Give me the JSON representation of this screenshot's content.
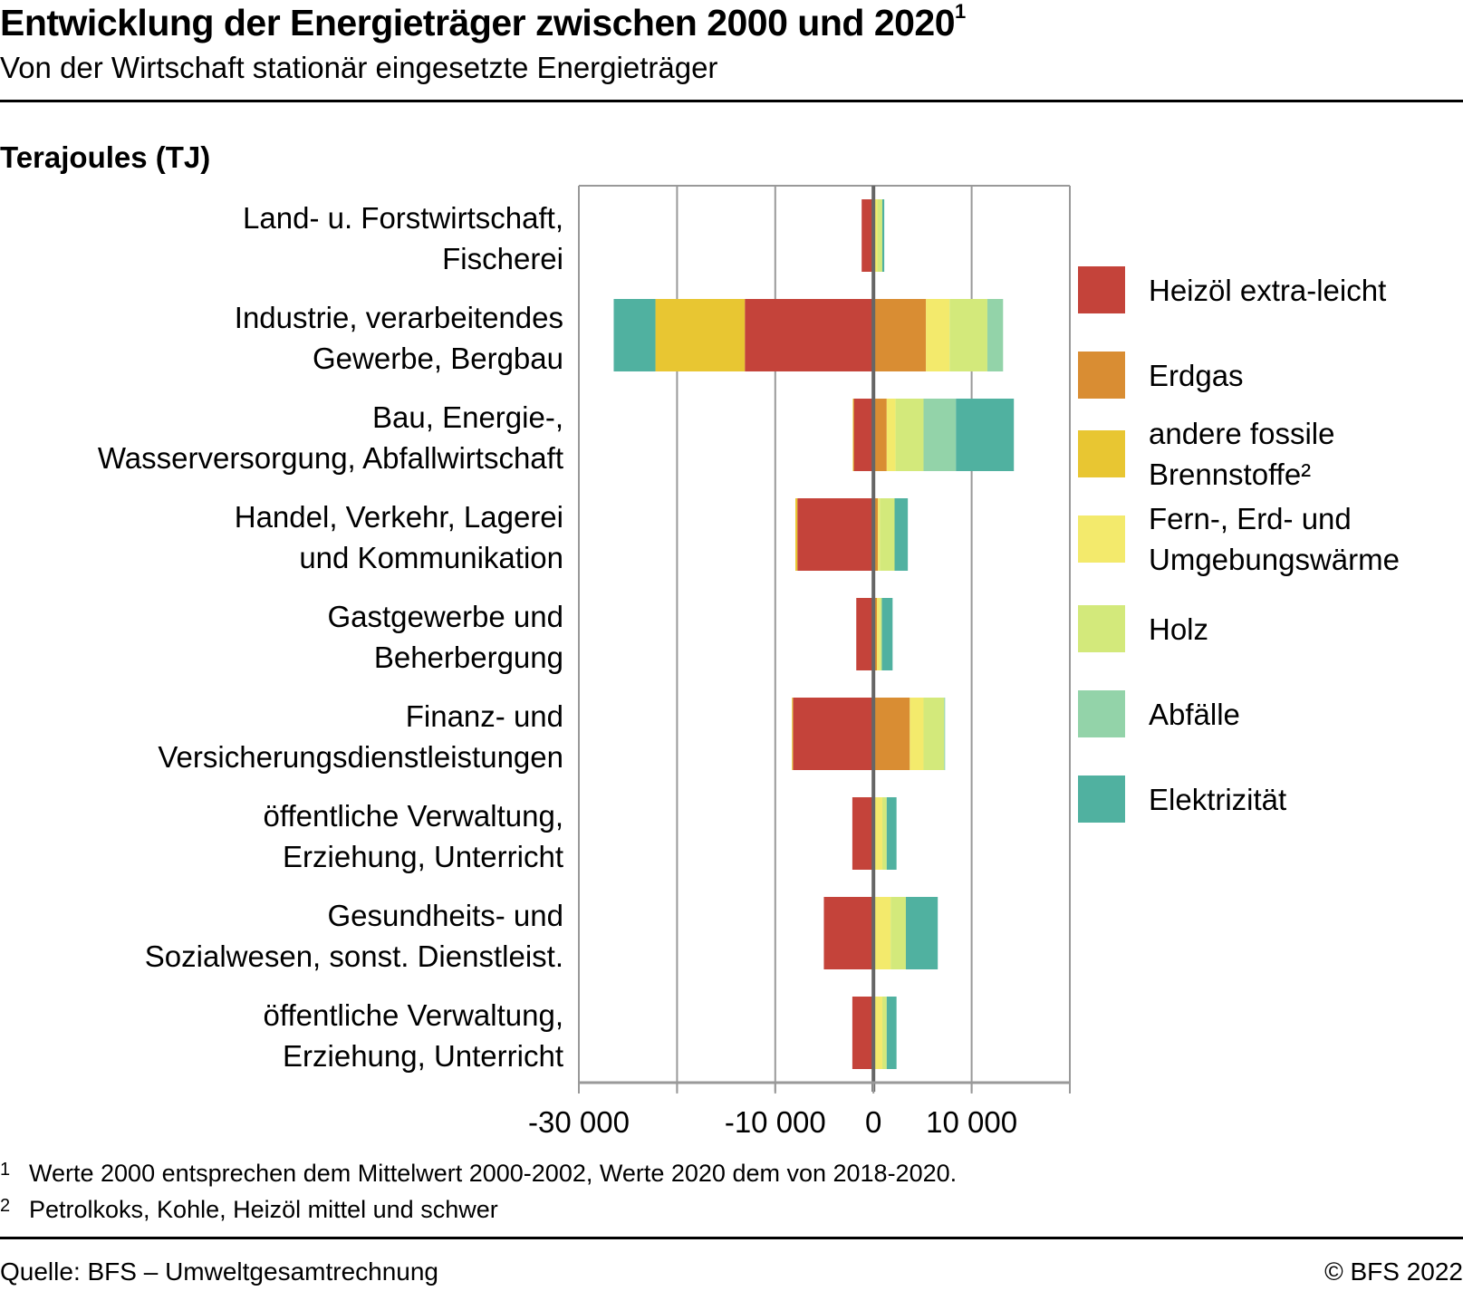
{
  "header": {
    "title": "Entwicklung der Energieträger zwischen 2000 und 2020",
    "title_footnote_mark": "1",
    "subtitle": "Von der Wirtschaft stationär eingesetzte Energieträger",
    "unit": "Terajoules (TJ)"
  },
  "chart_data": {
    "type": "bar",
    "orientation": "horizontal",
    "stacked": "diverging",
    "title": "Entwicklung der Energieträger zwischen 2000 und 2020",
    "xlabel": "",
    "ylabel": "Terajoules (TJ)",
    "xlim": [
      -30000,
      20000
    ],
    "xticks": [
      -30000,
      -20000,
      -10000,
      0,
      10000,
      20000
    ],
    "xtick_labels": [
      "-30 000",
      "",
      "-10 000",
      "0",
      "10 000",
      ""
    ],
    "grid": true,
    "legend_position": "right",
    "categories": [
      [
        "Land- u. Forstwirtschaft,",
        "Fischerei"
      ],
      [
        "Industrie, verarbeitendes",
        "Gewerbe, Bergbau"
      ],
      [
        "Bau, Energie-,",
        "Wasserversorgung, Abfallwirtschaft"
      ],
      [
        "Handel, Verkehr, Lagerei",
        "und Kommunikation"
      ],
      [
        "Gastgewerbe und",
        "Beherbergung"
      ],
      [
        "Finanz- und",
        "Versicherungsdienstleistungen"
      ],
      [
        "öffentliche Verwaltung,",
        "Erziehung, Unterricht"
      ],
      [
        "Gesundheits- und",
        "Sozialwesen, sonst. Dienstleist."
      ],
      [
        "öffentliche Verwaltung,",
        "Erziehung, Unterricht"
      ]
    ],
    "series": [
      {
        "name": "Heizöl extra-leicht",
        "color": "#c4433a",
        "values": [
          -1200,
          -13100,
          -2000,
          -7750,
          -1750,
          -8200,
          -2150,
          -5050,
          -2150
        ]
      },
      {
        "name": "Erdgas",
        "color": "#d98d33",
        "values": [
          100,
          5350,
          1350,
          450,
          350,
          3700,
          100,
          0,
          100
        ]
      },
      {
        "name": "andere fossile Brennstoffe²",
        "color": "#e8c632",
        "values": [
          0,
          -9100,
          -100,
          -200,
          0,
          -100,
          0,
          0,
          0
        ]
      },
      {
        "name": "Fern-, Erd- und Umgebungswärme",
        "color": "#f3ea6c",
        "values": [
          300,
          2400,
          900,
          200,
          300,
          1400,
          800,
          1750,
          800
        ]
      },
      {
        "name": "Holz",
        "color": "#d3e97b",
        "values": [
          500,
          3850,
          2850,
          1500,
          200,
          2100,
          450,
          1550,
          450
        ]
      },
      {
        "name": "Abfälle",
        "color": "#93d3a9",
        "values": [
          0,
          1600,
          3300,
          0,
          0,
          100,
          0,
          0,
          0
        ]
      },
      {
        "name": "Elektrizität",
        "color": "#50b1a0",
        "values": [
          200,
          -4250,
          5900,
          1350,
          1100,
          0,
          1000,
          3250,
          1000
        ]
      }
    ]
  },
  "legend": [
    {
      "label_lines": [
        "Heizöl extra-leicht"
      ],
      "color": "#c4433a"
    },
    {
      "label_lines": [
        "Erdgas"
      ],
      "color": "#d98d33"
    },
    {
      "label_lines": [
        "andere fossile",
        "Brennstoffe²"
      ],
      "color": "#e8c632"
    },
    {
      "label_lines": [
        "Fern-, Erd- und",
        "Umgebungswärme"
      ],
      "color": "#f3ea6c"
    },
    {
      "label_lines": [
        "Holz"
      ],
      "color": "#d3e97b"
    },
    {
      "label_lines": [
        "Abfälle"
      ],
      "color": "#93d3a9"
    },
    {
      "label_lines": [
        "Elektrizität"
      ],
      "color": "#50b1a0"
    }
  ],
  "footnotes": [
    {
      "mark": "1",
      "text": "Werte 2000 entsprechen dem Mittelwert 2000-2002, Werte 2020 dem von 2018-2020."
    },
    {
      "mark": "2",
      "text": "Petrolkoks, Kohle, Heizöl mittel und schwer"
    }
  ],
  "footer": {
    "source": "Quelle: BFS – Umweltgesamtrechnung",
    "copyright": "© BFS 2022"
  },
  "colors": {
    "grid": "#999999",
    "zero_line": "#666666",
    "text": "#000000"
  }
}
